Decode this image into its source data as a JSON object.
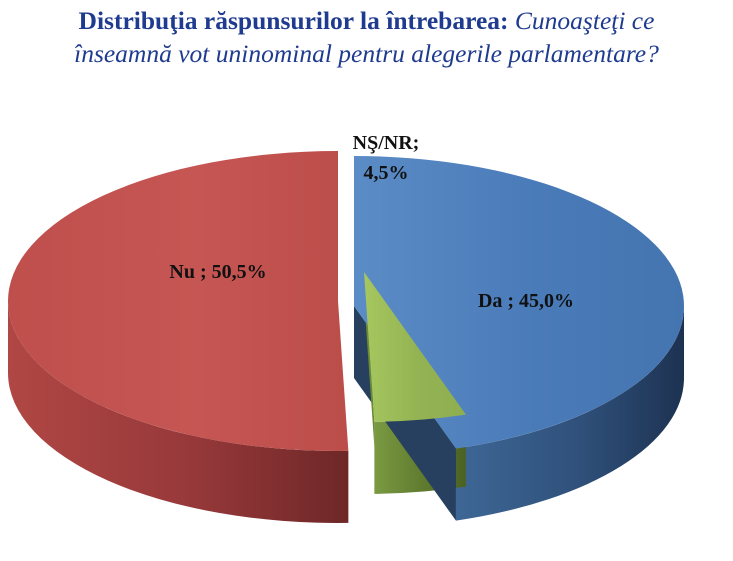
{
  "title": {
    "bold": "Distribuţia răspunsurilor la întrebarea:",
    "italic_line1": "Cunoaşteţi ce",
    "italic_line2": "înseamnă vot uninominal pentru alegerile parlamentare?"
  },
  "chart_data": {
    "type": "pie",
    "style": "3d-exploded",
    "title": "Distribuţia răspunsurilor la întrebarea: Cunoaşteţi ce înseamnă vot uninominal pentru alegerile parlamentare?",
    "slices": [
      {
        "category": "Da",
        "value": 45.0,
        "label": "Da ; 45,0%",
        "color": "#4f81bd",
        "side_color": "#2b4466"
      },
      {
        "category": "NŞ/NR",
        "value": 4.5,
        "label_line1": "NŞ/NR;",
        "label_line2": "4,5%",
        "color": "#9bbb59",
        "side_color": "#5f7a2e"
      },
      {
        "category": "Nu",
        "value": 50.5,
        "label": "Nu ; 50,5%",
        "color": "#c0504d",
        "side_color": "#7e2d2b"
      }
    ]
  }
}
